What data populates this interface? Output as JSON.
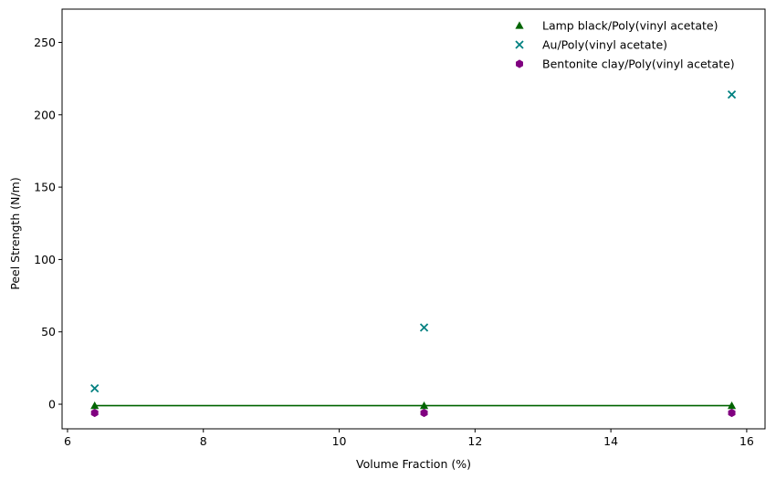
{
  "chart_data": {
    "type": "scatter",
    "title": "",
    "xlabel": "Volume Fraction (%)",
    "ylabel": "Peel Strength (N/m)",
    "xlim": [
      5.92,
      16.27
    ],
    "ylim": [
      -17,
      273
    ],
    "xticks": [
      6,
      8,
      10,
      12,
      14,
      16
    ],
    "yticks": [
      0,
      50,
      100,
      150,
      200,
      250
    ],
    "grid": false,
    "legend_position": "top-right",
    "series": [
      {
        "name": "Lamp black/Poly(vinyl acetate)",
        "marker": "triangle",
        "color": "#006400",
        "x": [
          6.4,
          11.25,
          15.78
        ],
        "y": [
          -1,
          -1,
          -1
        ],
        "fit_line": true
      },
      {
        "name": "Au/Poly(vinyl acetate)",
        "marker": "x",
        "color": "#008080",
        "x": [
          6.4,
          11.25,
          15.78
        ],
        "y": [
          11,
          53,
          214
        ]
      },
      {
        "name": "Bentonite clay/Poly(vinyl acetate)",
        "marker": "hexagon",
        "color": "#800080",
        "x": [
          6.4,
          11.25,
          15.78
        ],
        "y": [
          -6,
          -6,
          -6
        ]
      }
    ]
  }
}
